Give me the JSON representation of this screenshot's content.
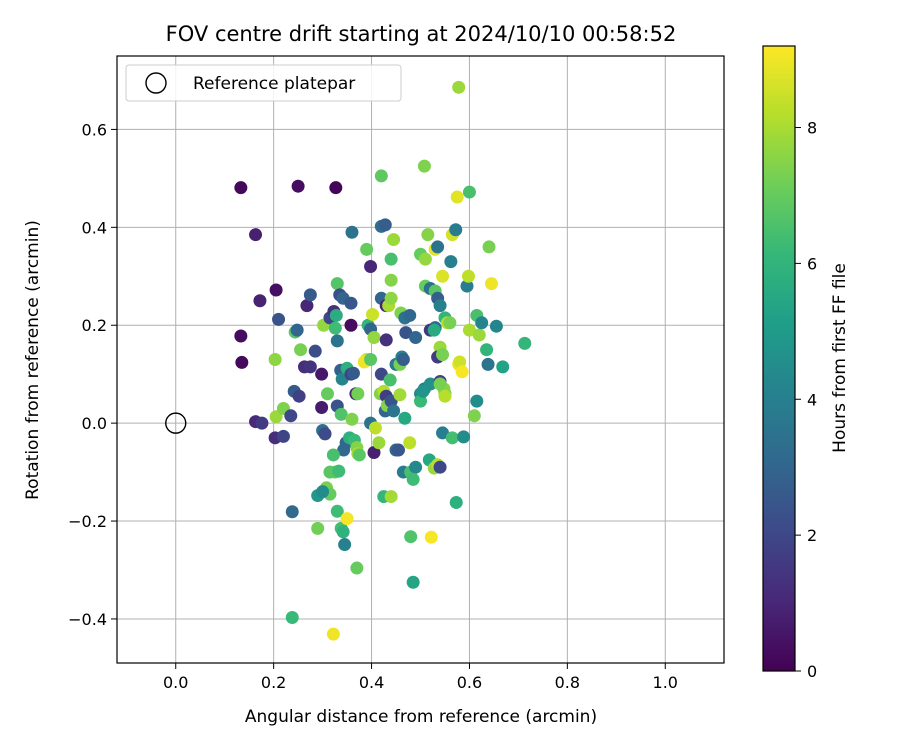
{
  "chart_data": {
    "type": "scatter",
    "title": "FOV centre drift starting at 2024/10/10 00:58:52",
    "xlabel": "Angular distance from reference (arcmin)",
    "ylabel": "Rotation from reference (arcmin)",
    "xlim": [
      -0.12,
      1.12
    ],
    "ylim": [
      -0.49,
      0.75
    ],
    "xticks": [
      0.0,
      0.2,
      0.4,
      0.6,
      0.8,
      1.0
    ],
    "xtick_labels": [
      "0.0",
      "0.2",
      "0.4",
      "0.6",
      "0.8",
      "1.0"
    ],
    "yticks": [
      -0.4,
      -0.2,
      0.0,
      0.2,
      0.4,
      0.6
    ],
    "ytick_labels": [
      "−0.4",
      "−0.2",
      "0.0",
      "0.2",
      "0.4",
      "0.6"
    ],
    "grid": true,
    "legend": {
      "placement": "top-left",
      "entries": [
        "Reference platepar"
      ]
    },
    "reference_point": {
      "x": 0.0,
      "y": 0.0
    },
    "colorbar": {
      "label": "Hours from first FF file",
      "range": [
        0,
        9.2
      ],
      "ticks": [
        0,
        2,
        4,
        6,
        8
      ],
      "tick_labels": [
        "0",
        "2",
        "4",
        "6",
        "8"
      ],
      "colormap": "viridis",
      "colormap_stops": [
        "#440154",
        "#482878",
        "#3e4989",
        "#31688e",
        "#26828e",
        "#1f9e89",
        "#35b779",
        "#6ece58",
        "#b5de2b",
        "#fde725"
      ]
    },
    "points": [
      {
        "x": 0.133,
        "y": 0.481,
        "h": 0.2
      },
      {
        "x": 0.25,
        "y": 0.484,
        "h": 0.3
      },
      {
        "x": 0.327,
        "y": 0.481,
        "h": 0.1
      },
      {
        "x": 0.163,
        "y": 0.385,
        "h": 0.8
      },
      {
        "x": 0.172,
        "y": 0.25,
        "h": 0.9
      },
      {
        "x": 0.205,
        "y": 0.272,
        "h": 0.4
      },
      {
        "x": 0.133,
        "y": 0.178,
        "h": 0.3
      },
      {
        "x": 0.135,
        "y": 0.124,
        "h": 0.2
      },
      {
        "x": 0.163,
        "y": 0.003,
        "h": 1.1
      },
      {
        "x": 0.176,
        "y": 0.0,
        "h": 1.6
      },
      {
        "x": 0.203,
        "y": -0.03,
        "h": 1.2
      },
      {
        "x": 0.22,
        "y": -0.027,
        "h": 1.9
      },
      {
        "x": 0.205,
        "y": 0.013,
        "h": 7.8
      },
      {
        "x": 0.22,
        "y": 0.03,
        "h": 7.4
      },
      {
        "x": 0.235,
        "y": 0.015,
        "h": 2.0
      },
      {
        "x": 0.242,
        "y": 0.065,
        "h": 2.6
      },
      {
        "x": 0.252,
        "y": 0.055,
        "h": 1.8
      },
      {
        "x": 0.263,
        "y": 0.115,
        "h": 1.2
      },
      {
        "x": 0.275,
        "y": 0.115,
        "h": 1.4
      },
      {
        "x": 0.285,
        "y": 0.147,
        "h": 2.2
      },
      {
        "x": 0.255,
        "y": 0.15,
        "h": 7.3
      },
      {
        "x": 0.244,
        "y": 0.186,
        "h": 6.8
      },
      {
        "x": 0.248,
        "y": 0.19,
        "h": 3.0
      },
      {
        "x": 0.203,
        "y": 0.13,
        "h": 7.6
      },
      {
        "x": 0.21,
        "y": 0.212,
        "h": 2.4
      },
      {
        "x": 0.268,
        "y": 0.24,
        "h": 1.0
      },
      {
        "x": 0.275,
        "y": 0.262,
        "h": 2.6
      },
      {
        "x": 0.298,
        "y": 0.1,
        "h": 0.6
      },
      {
        "x": 0.298,
        "y": 0.032,
        "h": 0.7
      },
      {
        "x": 0.3,
        "y": -0.015,
        "h": 3.3
      },
      {
        "x": 0.305,
        "y": -0.022,
        "h": 2.1
      },
      {
        "x": 0.31,
        "y": 0.06,
        "h": 7.0
      },
      {
        "x": 0.302,
        "y": 0.2,
        "h": 7.7
      },
      {
        "x": 0.315,
        "y": 0.215,
        "h": 2.0
      },
      {
        "x": 0.323,
        "y": 0.228,
        "h": 1.4
      },
      {
        "x": 0.33,
        "y": 0.285,
        "h": 6.7
      },
      {
        "x": 0.335,
        "y": 0.262,
        "h": 2.2
      },
      {
        "x": 0.342,
        "y": 0.255,
        "h": 3.0
      },
      {
        "x": 0.328,
        "y": 0.22,
        "h": 5.7
      },
      {
        "x": 0.326,
        "y": 0.194,
        "h": 6.3
      },
      {
        "x": 0.33,
        "y": 0.168,
        "h": 3.5
      },
      {
        "x": 0.337,
        "y": 0.108,
        "h": 2.8
      },
      {
        "x": 0.34,
        "y": 0.09,
        "h": 4.2
      },
      {
        "x": 0.35,
        "y": 0.112,
        "h": 5.8
      },
      {
        "x": 0.33,
        "y": 0.035,
        "h": 2.4
      },
      {
        "x": 0.338,
        "y": 0.018,
        "h": 6.6
      },
      {
        "x": 0.343,
        "y": -0.055,
        "h": 3.2
      },
      {
        "x": 0.348,
        "y": -0.04,
        "h": 3.0
      },
      {
        "x": 0.322,
        "y": -0.065,
        "h": 6.5
      },
      {
        "x": 0.325,
        "y": -0.1,
        "h": 7.1
      },
      {
        "x": 0.315,
        "y": -0.1,
        "h": 6.8
      },
      {
        "x": 0.333,
        "y": -0.098,
        "h": 6.3
      },
      {
        "x": 0.308,
        "y": -0.132,
        "h": 7.3
      },
      {
        "x": 0.29,
        "y": -0.148,
        "h": 4.9
      },
      {
        "x": 0.315,
        "y": -0.145,
        "h": 7.0
      },
      {
        "x": 0.3,
        "y": -0.14,
        "h": 4.4
      },
      {
        "x": 0.33,
        "y": -0.18,
        "h": 6.3
      },
      {
        "x": 0.29,
        "y": -0.215,
        "h": 7.2
      },
      {
        "x": 0.338,
        "y": -0.215,
        "h": 6.4
      },
      {
        "x": 0.342,
        "y": -0.222,
        "h": 5.9
      },
      {
        "x": 0.35,
        "y": -0.195,
        "h": 9.1
      },
      {
        "x": 0.345,
        "y": -0.248,
        "h": 4.0
      },
      {
        "x": 0.238,
        "y": -0.181,
        "h": 3.2
      },
      {
        "x": 0.37,
        "y": -0.296,
        "h": 7.0
      },
      {
        "x": 0.238,
        "y": -0.397,
        "h": 6.2
      },
      {
        "x": 0.322,
        "y": -0.431,
        "h": 9.0
      },
      {
        "x": 0.355,
        "y": -0.03,
        "h": 5.8
      },
      {
        "x": 0.365,
        "y": -0.035,
        "h": 6.2
      },
      {
        "x": 0.37,
        "y": -0.05,
        "h": 7.5
      },
      {
        "x": 0.372,
        "y": -0.062,
        "h": 7.9
      },
      {
        "x": 0.375,
        "y": -0.065,
        "h": 6.8
      },
      {
        "x": 0.36,
        "y": 0.008,
        "h": 7.4
      },
      {
        "x": 0.358,
        "y": 0.1,
        "h": 1.9
      },
      {
        "x": 0.363,
        "y": 0.102,
        "h": 2.6
      },
      {
        "x": 0.368,
        "y": 0.06,
        "h": 1.2
      },
      {
        "x": 0.372,
        "y": 0.06,
        "h": 7.2
      },
      {
        "x": 0.358,
        "y": 0.2,
        "h": 0.3
      },
      {
        "x": 0.358,
        "y": 0.245,
        "h": 2.5
      },
      {
        "x": 0.36,
        "y": 0.39,
        "h": 3.5
      },
      {
        "x": 0.39,
        "y": 0.355,
        "h": 7.0
      },
      {
        "x": 0.398,
        "y": 0.32,
        "h": 1.0
      },
      {
        "x": 0.39,
        "y": 0.13,
        "h": 8.5
      },
      {
        "x": 0.385,
        "y": 0.125,
        "h": 9.0
      },
      {
        "x": 0.398,
        "y": 0.13,
        "h": 6.8
      },
      {
        "x": 0.393,
        "y": 0.2,
        "h": 6.0
      },
      {
        "x": 0.398,
        "y": 0.192,
        "h": 3.0
      },
      {
        "x": 0.405,
        "y": 0.175,
        "h": 7.7
      },
      {
        "x": 0.402,
        "y": 0.222,
        "h": 8.5
      },
      {
        "x": 0.398,
        "y": 0.0,
        "h": 3.5
      },
      {
        "x": 0.408,
        "y": -0.01,
        "h": 8.3
      },
      {
        "x": 0.405,
        "y": -0.06,
        "h": 0.8
      },
      {
        "x": 0.415,
        "y": -0.04,
        "h": 7.8
      },
      {
        "x": 0.418,
        "y": 0.06,
        "h": 7.4
      },
      {
        "x": 0.42,
        "y": 0.1,
        "h": 2.0
      },
      {
        "x": 0.425,
        "y": 0.065,
        "h": 8.1
      },
      {
        "x": 0.43,
        "y": 0.055,
        "h": 1.7
      },
      {
        "x": 0.428,
        "y": 0.025,
        "h": 3.0
      },
      {
        "x": 0.432,
        "y": 0.036,
        "h": 7.5
      },
      {
        "x": 0.44,
        "y": 0.045,
        "h": 2.4
      },
      {
        "x": 0.445,
        "y": 0.025,
        "h": 3.6
      },
      {
        "x": 0.438,
        "y": 0.088,
        "h": 6.5
      },
      {
        "x": 0.45,
        "y": 0.12,
        "h": 3.7
      },
      {
        "x": 0.458,
        "y": 0.12,
        "h": 7.3
      },
      {
        "x": 0.462,
        "y": 0.135,
        "h": 4.0
      },
      {
        "x": 0.465,
        "y": 0.13,
        "h": 2.7
      },
      {
        "x": 0.42,
        "y": 0.255,
        "h": 3.0
      },
      {
        "x": 0.43,
        "y": 0.24,
        "h": 0.9
      },
      {
        "x": 0.435,
        "y": 0.24,
        "h": 8.0
      },
      {
        "x": 0.44,
        "y": 0.255,
        "h": 7.6
      },
      {
        "x": 0.43,
        "y": 0.17,
        "h": 1.3
      },
      {
        "x": 0.44,
        "y": 0.292,
        "h": 7.5
      },
      {
        "x": 0.44,
        "y": 0.335,
        "h": 6.5
      },
      {
        "x": 0.445,
        "y": 0.375,
        "h": 7.8
      },
      {
        "x": 0.42,
        "y": 0.402,
        "h": 3.3
      },
      {
        "x": 0.428,
        "y": 0.405,
        "h": 2.7
      },
      {
        "x": 0.42,
        "y": 0.505,
        "h": 6.9
      },
      {
        "x": 0.46,
        "y": 0.225,
        "h": 7.4
      },
      {
        "x": 0.468,
        "y": 0.215,
        "h": 3.5
      },
      {
        "x": 0.47,
        "y": 0.185,
        "h": 2.4
      },
      {
        "x": 0.478,
        "y": 0.22,
        "h": 3.1
      },
      {
        "x": 0.49,
        "y": 0.175,
        "h": 3.0
      },
      {
        "x": 0.458,
        "y": 0.058,
        "h": 7.9
      },
      {
        "x": 0.468,
        "y": 0.01,
        "h": 5.5
      },
      {
        "x": 0.45,
        "y": -0.055,
        "h": 3.0
      },
      {
        "x": 0.455,
        "y": -0.055,
        "h": 2.5
      },
      {
        "x": 0.465,
        "y": -0.1,
        "h": 3.8
      },
      {
        "x": 0.478,
        "y": -0.04,
        "h": 8.3
      },
      {
        "x": 0.48,
        "y": -0.1,
        "h": 6.5
      },
      {
        "x": 0.49,
        "y": -0.09,
        "h": 4.3
      },
      {
        "x": 0.485,
        "y": -0.115,
        "h": 6.3
      },
      {
        "x": 0.425,
        "y": -0.15,
        "h": 6.1
      },
      {
        "x": 0.44,
        "y": -0.15,
        "h": 7.9
      },
      {
        "x": 0.48,
        "y": -0.232,
        "h": 6.6
      },
      {
        "x": 0.485,
        "y": -0.325,
        "h": 5.4
      },
      {
        "x": 0.522,
        "y": -0.233,
        "h": 9.1
      },
      {
        "x": 0.5,
        "y": 0.06,
        "h": 4.3
      },
      {
        "x": 0.5,
        "y": 0.045,
        "h": 6.2
      },
      {
        "x": 0.508,
        "y": 0.07,
        "h": 3.8
      },
      {
        "x": 0.52,
        "y": 0.08,
        "h": 4.6
      },
      {
        "x": 0.518,
        "y": -0.075,
        "h": 5.5
      },
      {
        "x": 0.528,
        "y": -0.092,
        "h": 7.8
      },
      {
        "x": 0.535,
        "y": -0.085,
        "h": 8.2
      },
      {
        "x": 0.54,
        "y": -0.09,
        "h": 2.0
      },
      {
        "x": 0.545,
        "y": -0.02,
        "h": 3.9
      },
      {
        "x": 0.55,
        "y": 0.06,
        "h": 7.0
      },
      {
        "x": 0.548,
        "y": 0.07,
        "h": 7.5
      },
      {
        "x": 0.55,
        "y": 0.055,
        "h": 8.2
      },
      {
        "x": 0.54,
        "y": 0.085,
        "h": 1.9
      },
      {
        "x": 0.54,
        "y": 0.08,
        "h": 7.3
      },
      {
        "x": 0.505,
        "y": 0.065,
        "h": 4.8
      },
      {
        "x": 0.53,
        "y": 0.195,
        "h": 3.2
      },
      {
        "x": 0.52,
        "y": 0.19,
        "h": 1.5
      },
      {
        "x": 0.528,
        "y": 0.19,
        "h": 5.6
      },
      {
        "x": 0.54,
        "y": 0.155,
        "h": 7.8
      },
      {
        "x": 0.535,
        "y": 0.135,
        "h": 1.6
      },
      {
        "x": 0.545,
        "y": 0.14,
        "h": 7.3
      },
      {
        "x": 0.5,
        "y": 0.345,
        "h": 7.0
      },
      {
        "x": 0.51,
        "y": 0.335,
        "h": 7.7
      },
      {
        "x": 0.515,
        "y": 0.385,
        "h": 7.5
      },
      {
        "x": 0.508,
        "y": 0.525,
        "h": 7.4
      },
      {
        "x": 0.51,
        "y": 0.28,
        "h": 7.0
      },
      {
        "x": 0.52,
        "y": 0.275,
        "h": 3.4
      },
      {
        "x": 0.53,
        "y": 0.27,
        "h": 6.8
      },
      {
        "x": 0.535,
        "y": 0.255,
        "h": 2.7
      },
      {
        "x": 0.54,
        "y": 0.24,
        "h": 4.0
      },
      {
        "x": 0.53,
        "y": 0.355,
        "h": 8.8
      },
      {
        "x": 0.535,
        "y": 0.36,
        "h": 3.5
      },
      {
        "x": 0.545,
        "y": 0.3,
        "h": 8.7
      },
      {
        "x": 0.55,
        "y": 0.215,
        "h": 6.0
      },
      {
        "x": 0.555,
        "y": 0.205,
        "h": 8.2
      },
      {
        "x": 0.56,
        "y": 0.205,
        "h": 7.3
      },
      {
        "x": 0.565,
        "y": 0.385,
        "h": 8.6
      },
      {
        "x": 0.572,
        "y": 0.395,
        "h": 3.8
      },
      {
        "x": 0.562,
        "y": 0.33,
        "h": 4.0
      },
      {
        "x": 0.575,
        "y": 0.462,
        "h": 8.8
      },
      {
        "x": 0.578,
        "y": 0.686,
        "h": 7.8
      },
      {
        "x": 0.6,
        "y": 0.472,
        "h": 6.5
      },
      {
        "x": 0.565,
        "y": -0.03,
        "h": 6.4
      },
      {
        "x": 0.573,
        "y": -0.162,
        "h": 5.8
      },
      {
        "x": 0.588,
        "y": -0.028,
        "h": 4.5
      },
      {
        "x": 0.578,
        "y": 0.12,
        "h": 9.0
      },
      {
        "x": 0.58,
        "y": 0.125,
        "h": 8.5
      },
      {
        "x": 0.585,
        "y": 0.105,
        "h": 9.1
      },
      {
        "x": 0.6,
        "y": 0.19,
        "h": 8.0
      },
      {
        "x": 0.595,
        "y": 0.28,
        "h": 3.9
      },
      {
        "x": 0.598,
        "y": 0.3,
        "h": 8.3
      },
      {
        "x": 0.61,
        "y": 0.015,
        "h": 7.4
      },
      {
        "x": 0.615,
        "y": 0.045,
        "h": 4.5
      },
      {
        "x": 0.615,
        "y": 0.22,
        "h": 6.5
      },
      {
        "x": 0.62,
        "y": 0.18,
        "h": 7.8
      },
      {
        "x": 0.625,
        "y": 0.205,
        "h": 4.2
      },
      {
        "x": 0.635,
        "y": 0.15,
        "h": 6.0
      },
      {
        "x": 0.638,
        "y": 0.12,
        "h": 3.5
      },
      {
        "x": 0.64,
        "y": 0.36,
        "h": 7.3
      },
      {
        "x": 0.645,
        "y": 0.285,
        "h": 9.0
      },
      {
        "x": 0.655,
        "y": 0.198,
        "h": 4.2
      },
      {
        "x": 0.668,
        "y": 0.115,
        "h": 5.3
      },
      {
        "x": 0.713,
        "y": 0.163,
        "h": 6.1
      }
    ]
  }
}
